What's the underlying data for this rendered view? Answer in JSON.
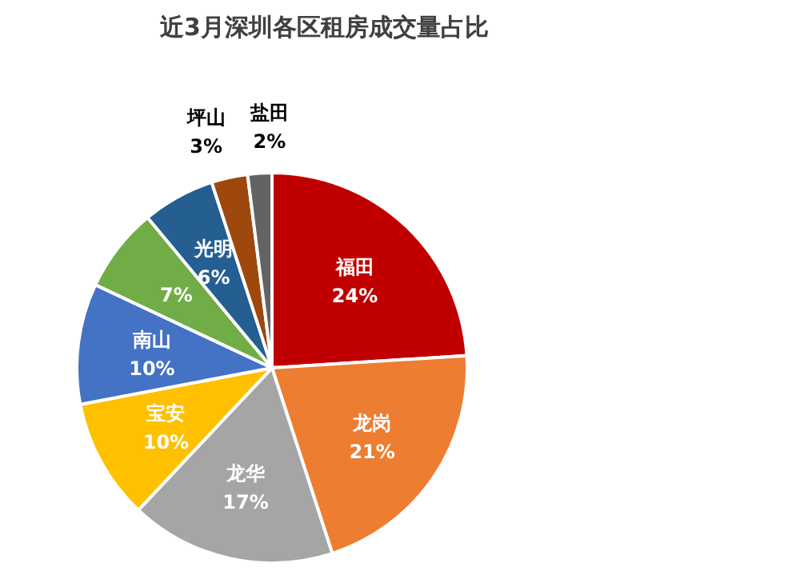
{
  "chart_data": {
    "type": "pie",
    "title": "近3月深圳各区租房成交量占比",
    "categories": [
      "福田",
      "龙岗",
      "龙华",
      "宝安",
      "南山",
      null,
      "光明",
      "坪山",
      "盐田"
    ],
    "values": [
      24,
      21,
      17,
      10,
      10,
      7,
      6,
      3,
      2
    ],
    "value_labels": [
      "24%",
      "21%",
      "17%",
      "10%",
      "10%",
      "7%",
      "6%",
      "3%",
      "2%"
    ],
    "colors": [
      "#c00000",
      "#ed7d31",
      "#a5a5a5",
      "#ffc000",
      "#4472c4",
      "#70ad47",
      "#255e91",
      "#9e480e",
      "#636363"
    ]
  }
}
